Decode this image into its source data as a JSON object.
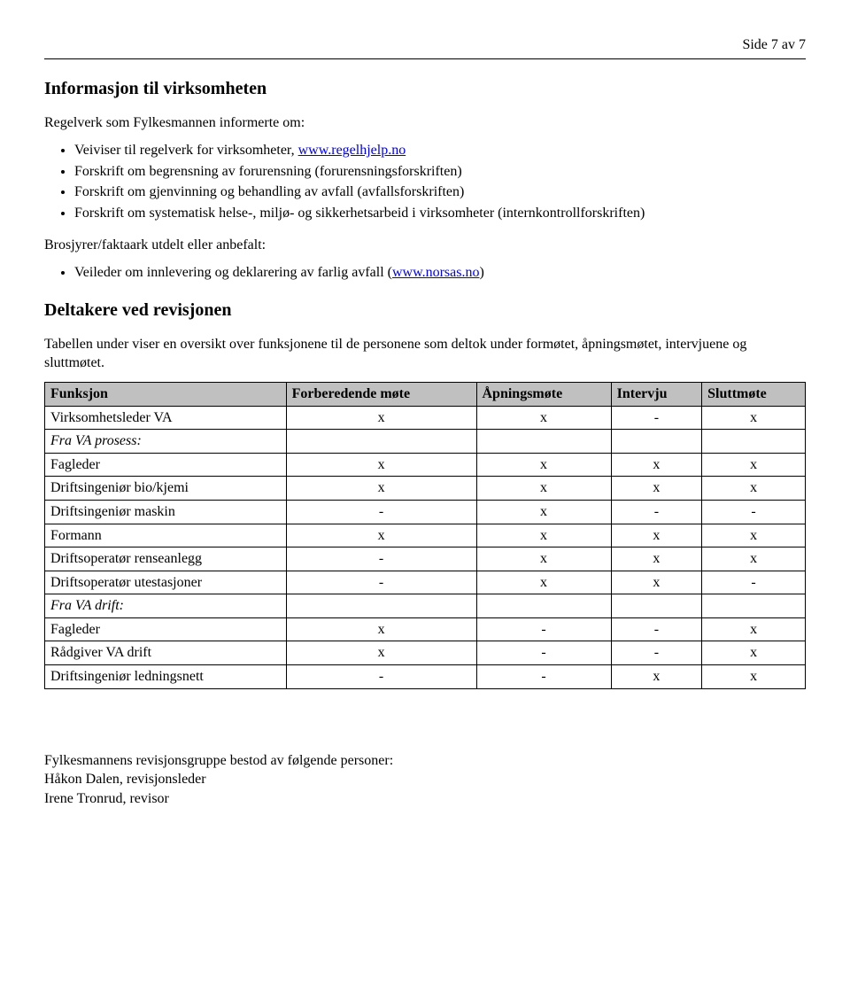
{
  "page_number": "Side 7 av 7",
  "section1": {
    "title": "Informasjon til virksomheten",
    "intro": "Regelverk som Fylkesmannen informerte om:",
    "bullets": [
      {
        "prefix": "Veiviser til regelverk for virksomheter, ",
        "link": "www.regelhjelp.no"
      },
      {
        "text": "Forskrift om begrensning av forurensning (forurensningsforskriften)"
      },
      {
        "text": "Forskrift om gjenvinning og behandling av avfall (avfallsforskriften)"
      },
      {
        "text": "Forskrift om systematisk helse-, miljø- og sikkerhetsarbeid i virksomheter (internkontrollforskriften)"
      }
    ],
    "brochure_intro": "Brosjyrer/faktaark utdelt eller anbefalt:",
    "brochure_bullets": [
      {
        "prefix": "Veileder om innlevering og deklarering av farlig avfall (",
        "link": "www.norsas.no",
        "suffix": ")"
      }
    ]
  },
  "section2": {
    "title": "Deltakere ved revisjonen",
    "intro": "Tabellen under viser en oversikt over funksjonene til de personene som deltok under formøtet, åpningsmøtet, intervjuene og sluttmøtet."
  },
  "table": {
    "columns": [
      "Funksjon",
      "Forberedende møte",
      "Åpningsmøte",
      "Intervju",
      "Sluttmøte"
    ],
    "header_bg": "#c0c0c0",
    "rows": [
      {
        "label": "Virksomhetsleder VA",
        "italic": false,
        "vals": [
          "x",
          "x",
          "-",
          "x"
        ]
      },
      {
        "label": "Fra VA prosess:",
        "italic": true,
        "vals": [
          "",
          "",
          "",
          ""
        ]
      },
      {
        "label": "Fagleder",
        "italic": false,
        "vals": [
          "x",
          "x",
          "x",
          "x"
        ]
      },
      {
        "label": "Driftsingeniør bio/kjemi",
        "italic": false,
        "vals": [
          "x",
          "x",
          "x",
          "x"
        ]
      },
      {
        "label": "Driftsingeniør maskin",
        "italic": false,
        "vals": [
          "-",
          "x",
          "-",
          "-"
        ]
      },
      {
        "label": "Formann",
        "italic": false,
        "vals": [
          "x",
          "x",
          "x",
          "x"
        ]
      },
      {
        "label": "Driftsoperatør renseanlegg",
        "italic": false,
        "vals": [
          "-",
          "x",
          "x",
          "x"
        ]
      },
      {
        "label": "Driftsoperatør utestasjoner",
        "italic": false,
        "vals": [
          "-",
          "x",
          "x",
          "-"
        ]
      },
      {
        "label": "Fra VA drift:",
        "italic": true,
        "vals": [
          "",
          "",
          "",
          ""
        ]
      },
      {
        "label": "Fagleder",
        "italic": false,
        "vals": [
          "x",
          "-",
          "-",
          "x"
        ]
      },
      {
        "label": "Rådgiver VA drift",
        "italic": false,
        "vals": [
          "x",
          "-",
          "-",
          "x"
        ]
      },
      {
        "label": "Driftsingeniør ledningsnett",
        "italic": false,
        "vals": [
          "-",
          "-",
          "x",
          "x"
        ]
      }
    ]
  },
  "footer": {
    "line1": "Fylkesmannens revisjonsgruppe bestod av følgende personer:",
    "line2": "Håkon Dalen, revisjonsleder",
    "line3": "Irene Tronrud, revisor"
  }
}
